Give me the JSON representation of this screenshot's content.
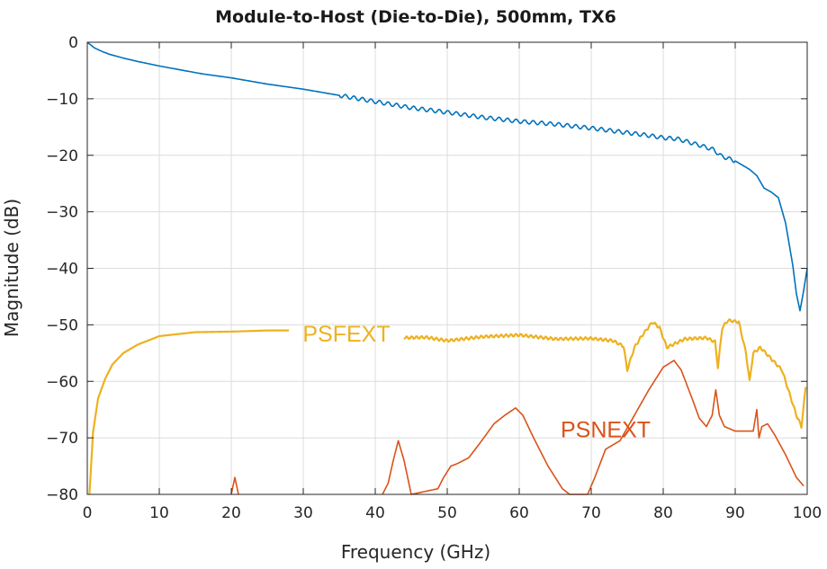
{
  "chart_data": {
    "type": "line",
    "title": "Module-to-Host (Die-to-Die), 500mm, TX6",
    "xlabel": "Frequency (GHz)",
    "ylabel": "Magnitude (dB)",
    "xlim": [
      0,
      100
    ],
    "ylim": [
      -80,
      0
    ],
    "xticks": [
      "0",
      "10",
      "20",
      "30",
      "40",
      "50",
      "60",
      "70",
      "80",
      "90",
      "100"
    ],
    "yticks": [
      "0",
      "−10",
      "−20",
      "−30",
      "−40",
      "−50",
      "−60",
      "−70",
      "−80"
    ],
    "grid": true,
    "legend": "none",
    "series": [
      {
        "name": "",
        "color": "#0072BD",
        "x": [
          0,
          1,
          2,
          3,
          5,
          7,
          10,
          13,
          16,
          20,
          25,
          30,
          35,
          40,
          45,
          50,
          55,
          60,
          65,
          70,
          75,
          78,
          80,
          82,
          85,
          87,
          88,
          90,
          92,
          93,
          94,
          95,
          96,
          97,
          98,
          98.5,
          99,
          99.5,
          100
        ],
        "y": [
          0,
          -1,
          -1.6,
          -2.1,
          -2.8,
          -3.4,
          -4.2,
          -4.9,
          -5.6,
          -6.3,
          -7.4,
          -8.3,
          -9.4,
          -10.5,
          -11.6,
          -12.4,
          -13.3,
          -14.0,
          -14.5,
          -15.2,
          -16.0,
          -16.5,
          -16.9,
          -17.1,
          -18.2,
          -19.0,
          -20.1,
          -21.0,
          -22.5,
          -23.6,
          -25.8,
          -26.5,
          -27.5,
          -32.0,
          -39.5,
          -44.5,
          -47.5,
          -44.0,
          -40.0
        ]
      },
      {
        "name": "PSFEXT",
        "color": "#EDB120",
        "x": [
          0.3,
          0.8,
          1.5,
          2.5,
          3.5,
          5,
          7,
          10,
          15,
          20,
          25,
          28
        ],
        "y": [
          -80,
          -69,
          -63,
          -59.5,
          -57,
          -55,
          -53.5,
          -52,
          -51.3,
          -51.2,
          -51,
          -51
        ]
      },
      {
        "name": "",
        "color": "#EDB120",
        "x": [
          44,
          47,
          50,
          55,
          60,
          65,
          70,
          73,
          74.5,
          75,
          76,
          77,
          78.5,
          79.5,
          80.5,
          83,
          86,
          87.2,
          87.6,
          88.2,
          89,
          90.5,
          91.5,
          92,
          92.5,
          93.5,
          95,
          96.5,
          97.5,
          98.5,
          99.2,
          99.8
        ],
        "y": [
          -52.3,
          -52.2,
          -52.8,
          -52.1,
          -51.8,
          -52.5,
          -52.4,
          -52.8,
          -53.8,
          -58,
          -54,
          -52,
          -49.5,
          -50.5,
          -54,
          -52.5,
          -52.3,
          -53,
          -57.5,
          -50.5,
          -49.2,
          -49.5,
          -55,
          -60,
          -55,
          -54,
          -56,
          -58,
          -62,
          -66,
          -68,
          -61
        ]
      },
      {
        "name": "PSNEXT",
        "color": "#D95319",
        "x": [
          41,
          41.8,
          42.5,
          43.2,
          44,
          45,
          48.7,
          49.5,
          50.5,
          51.5,
          53,
          54.5,
          56.5,
          58,
          59.5,
          60.5,
          62,
          64,
          66,
          67,
          69.5,
          70.5,
          72,
          74,
          76,
          78,
          80,
          81.5,
          82.5,
          84,
          85,
          86,
          86.8,
          87.3,
          87.8,
          88.5,
          90,
          92.5,
          93,
          93.3,
          93.7,
          94.5,
          95.5,
          97,
          98.5,
          99.5
        ],
        "y": [
          -80,
          -78,
          -74,
          -70.5,
          -74,
          -80,
          -79,
          -77,
          -75,
          -74.5,
          -73.5,
          -71,
          -67.5,
          -66,
          -64.7,
          -66,
          -70,
          -75,
          -79,
          -80,
          -80,
          -77,
          -72,
          -70.5,
          -66,
          -61.5,
          -57.5,
          -56.3,
          -58,
          -63,
          -66.5,
          -68,
          -66,
          -61.5,
          -66,
          -68,
          -68.8,
          -68.8,
          -65,
          -70,
          -68,
          -67.5,
          -69.5,
          -73,
          -77,
          -78.5
        ]
      },
      {
        "name": "",
        "color": "#D95319",
        "x": [
          20,
          20.5,
          21
        ],
        "y": [
          -80,
          -77,
          -80
        ]
      }
    ],
    "annotations": [
      {
        "text": "PSFEXT",
        "x": 36,
        "y": -51.5,
        "color": "#EDB120"
      },
      {
        "text": "PSNEXT",
        "x": 72,
        "y": -68.5,
        "color": "#D95319"
      }
    ]
  }
}
